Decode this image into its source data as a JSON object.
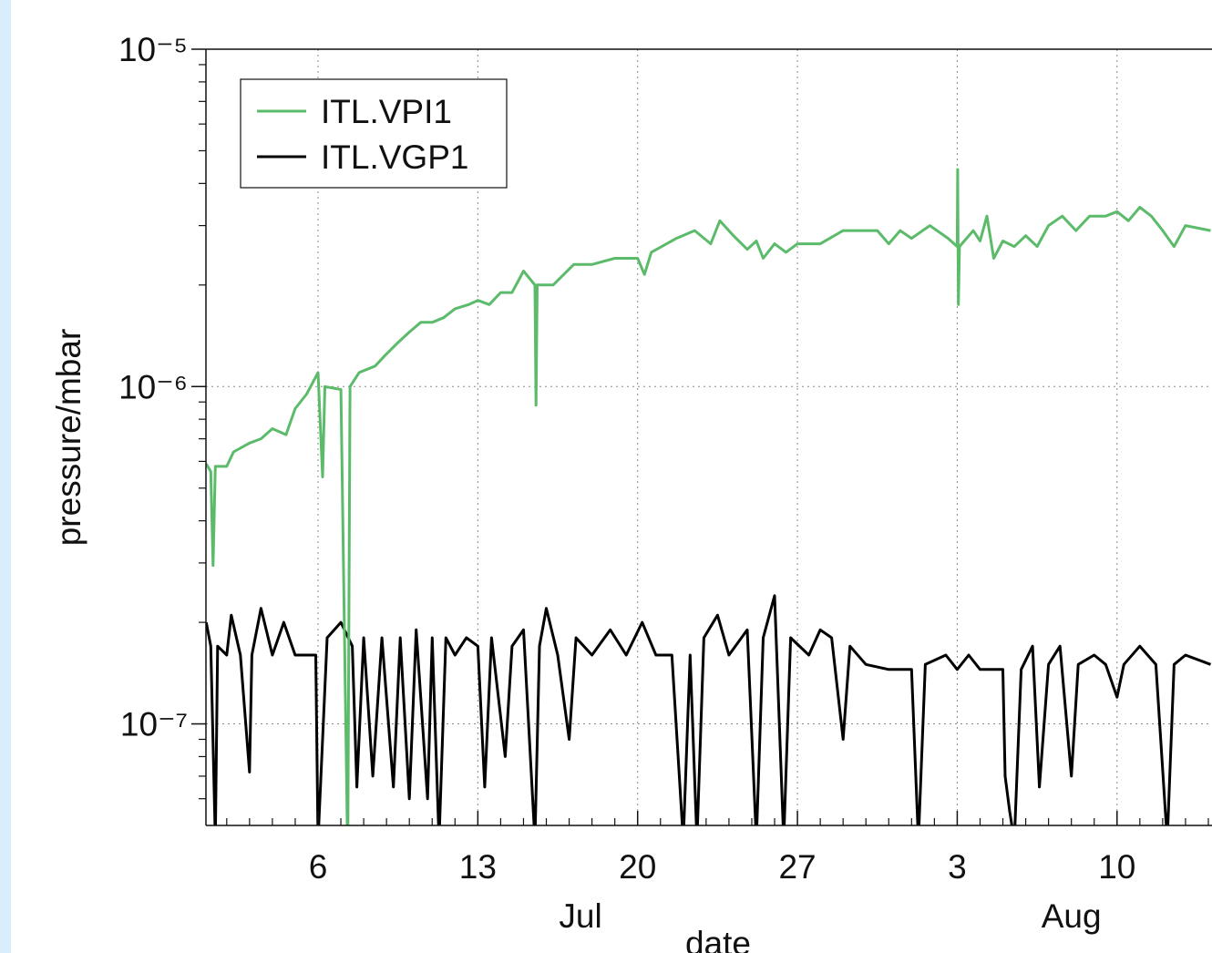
{
  "chart_data": {
    "type": "line",
    "x_label": "date",
    "y_label": "pressure/mbar",
    "log_y": true,
    "grid": true,
    "xlim": [
      1.09,
      45.16
    ],
    "xticks": [
      6,
      13,
      20,
      27,
      {
        "value": 34,
        "label": "3"
      },
      {
        "value": 41,
        "label": "10"
      }
    ],
    "minor_xticks": [
      2,
      3,
      4,
      5,
      7,
      8,
      9,
      10,
      11,
      12,
      14,
      15,
      16,
      17,
      18,
      19,
      21,
      22,
      23,
      24,
      25,
      26,
      28,
      29,
      30,
      31,
      32,
      33,
      35,
      36,
      37,
      38,
      39,
      40,
      42,
      43,
      44,
      45
    ],
    "month_labels": [
      {
        "value": 17.5,
        "label": "Jul"
      },
      {
        "value": 39.0,
        "label": "Aug"
      }
    ],
    "ylim": [
      5e-08,
      1e-05
    ],
    "yticks": [
      {
        "value": 1e-07,
        "label": "10⁻⁷"
      },
      {
        "value": 1e-06,
        "label": "10⁻⁶"
      },
      {
        "value": 1e-05,
        "label": "10⁻⁵"
      }
    ],
    "minor_yticks": [
      6e-08,
      7e-08,
      8e-08,
      9e-08,
      2e-07,
      3e-07,
      4e-07,
      5e-07,
      6e-07,
      7e-07,
      8e-07,
      9e-07,
      2e-06,
      3e-06,
      4e-06,
      5e-06,
      6e-06,
      7e-06,
      8e-06,
      9e-06
    ],
    "legend": "upper left",
    "series": [
      {
        "name": "ITL.VPI1",
        "color": "#5cbb6a",
        "x": [
          1.1,
          1.3,
          1.4,
          1.5,
          2.0,
          2.3,
          3.0,
          3.5,
          4.0,
          4.6,
          5.0,
          5.5,
          6.0,
          6.2,
          6.3,
          7.0,
          7.3,
          7.4,
          7.8,
          8.5,
          9.0,
          9.5,
          10,
          10.5,
          11,
          11.5,
          12,
          12.6,
          13,
          13.5,
          14,
          14.5,
          15,
          15.5,
          15.55,
          15.6,
          16.3,
          17.2,
          18,
          19.0,
          20,
          20.3,
          20.6,
          21.7,
          22.5,
          23.2,
          23.6,
          24.2,
          24.8,
          25.2,
          25.5,
          26.0,
          26.5,
          27.0,
          28,
          29,
          30.5,
          31,
          31.5,
          32,
          32.8,
          33.6,
          34.0,
          34.02,
          34.05,
          34.1,
          34.7,
          35.0,
          35.3,
          35.6,
          36.0,
          36.5,
          37.0,
          37.5,
          38.0,
          38.6,
          39.2,
          39.8,
          40.5,
          41,
          41.5,
          42.0,
          42.5,
          43.0,
          43.5,
          44.0,
          45.1
        ],
        "values": [
          5.9e-07,
          5.6e-07,
          2.95e-07,
          5.8e-07,
          5.8e-07,
          6.4e-07,
          6.8e-07,
          7e-07,
          7.5e-07,
          7.2e-07,
          8.6e-07,
          9.5e-07,
          1.1e-06,
          5.4e-07,
          1e-06,
          9.8e-07,
          4e-08,
          1e-06,
          1.1e-06,
          1.15e-06,
          1.25e-06,
          1.35e-06,
          1.45e-06,
          1.55e-06,
          1.55e-06,
          1.6e-06,
          1.7e-06,
          1.75e-06,
          1.8e-06,
          1.75e-06,
          1.9e-06,
          1.9e-06,
          2.2e-06,
          2e-06,
          8.8e-07,
          2e-06,
          2e-06,
          2.3e-06,
          2.3e-06,
          2.4e-06,
          2.4e-06,
          2.15e-06,
          2.5e-06,
          2.75e-06,
          2.9e-06,
          2.65e-06,
          3.1e-06,
          2.8e-06,
          2.55e-06,
          2.7e-06,
          2.4e-06,
          2.65e-06,
          2.5e-06,
          2.65e-06,
          2.65e-06,
          2.9e-06,
          2.9e-06,
          2.65e-06,
          2.9e-06,
          2.75e-06,
          3e-06,
          2.75e-06,
          2.6e-06,
          4.4e-06,
          1.75e-06,
          2.6e-06,
          2.9e-06,
          2.7e-06,
          3.2e-06,
          2.4e-06,
          2.7e-06,
          2.6e-06,
          2.8e-06,
          2.6e-06,
          3e-06,
          3.2e-06,
          2.9e-06,
          3.2e-06,
          3.2e-06,
          3.3e-06,
          3.1e-06,
          3.4e-06,
          3.2e-06,
          2.9e-06,
          2.6e-06,
          3e-06,
          2.9e-06
        ]
      },
      {
        "name": "ITL.VGP1",
        "color": "#000000",
        "x": [
          1.1,
          1.3,
          1.5,
          1.6,
          2.0,
          2.2,
          2.6,
          3.0,
          3.1,
          3.5,
          4.0,
          4.5,
          5.0,
          5.9,
          6.0,
          6.4,
          7.0,
          7.5,
          7.7,
          8.0,
          8.4,
          8.8,
          9.3,
          9.6,
          10.0,
          10.3,
          10.8,
          11.0,
          11.3,
          11.6,
          12.0,
          12.5,
          13.0,
          13.3,
          13.6,
          14.2,
          14.5,
          15.0,
          15.5,
          15.7,
          16.0,
          16.5,
          17.0,
          17.3,
          18,
          18.8,
          19.5,
          20.2,
          20.8,
          21.5,
          22.0,
          22.3,
          22.6,
          22.9,
          23.5,
          24,
          24.8,
          25.2,
          25.5,
          26.0,
          26.4,
          26.7,
          27.5,
          28,
          28.5,
          29,
          29.3,
          30,
          31,
          32,
          32.3,
          32.6,
          33.5,
          34.0,
          34.5,
          35.0,
          36.0,
          36.1,
          36.3,
          36.5,
          36.8,
          37.3,
          37.6,
          38.0,
          38.5,
          39.0,
          39.3,
          40,
          40.5,
          41,
          41.3,
          42,
          42.7,
          43.2,
          43.5,
          44.0,
          45.1
        ],
        "values": [
          2e-07,
          1.7e-07,
          4.5e-08,
          1.7e-07,
          1.6e-07,
          2.1e-07,
          1.6e-07,
          7.2e-08,
          1.6e-07,
          2.2e-07,
          1.6e-07,
          2e-07,
          1.6e-07,
          1.6e-07,
          4.5e-08,
          1.8e-07,
          2e-07,
          1.7e-07,
          6.5e-08,
          1.8e-07,
          7e-08,
          1.8e-07,
          6.5e-08,
          1.8e-07,
          6e-08,
          1.9e-07,
          6e-08,
          1.8e-07,
          4.5e-08,
          1.8e-07,
          1.6e-07,
          1.8e-07,
          1.7e-07,
          6.5e-08,
          1.8e-07,
          8e-08,
          1.7e-07,
          1.9e-07,
          4.5e-08,
          1.7e-07,
          2.2e-07,
          1.6e-07,
          9e-08,
          1.8e-07,
          1.6e-07,
          1.9e-07,
          1.6e-07,
          2e-07,
          1.6e-07,
          1.6e-07,
          4.5e-08,
          1.6e-07,
          4.5e-08,
          1.8e-07,
          2.1e-07,
          1.6e-07,
          1.9e-07,
          4.5e-08,
          1.8e-07,
          2.4e-07,
          4.5e-08,
          1.8e-07,
          1.6e-07,
          1.9e-07,
          1.8e-07,
          9e-08,
          1.7e-07,
          1.5e-07,
          1.45e-07,
          1.45e-07,
          4.5e-08,
          1.5e-07,
          1.6e-07,
          1.45e-07,
          1.6e-07,
          1.45e-07,
          1.45e-07,
          7e-08,
          5.5e-08,
          4.5e-08,
          1.45e-07,
          1.7e-07,
          6.5e-08,
          1.5e-07,
          1.7e-07,
          7e-08,
          1.5e-07,
          1.6e-07,
          1.5e-07,
          1.2e-07,
          1.5e-07,
          1.7e-07,
          1.5e-07,
          4.5e-08,
          1.5e-07,
          1.6e-07,
          1.5e-07
        ]
      }
    ]
  }
}
